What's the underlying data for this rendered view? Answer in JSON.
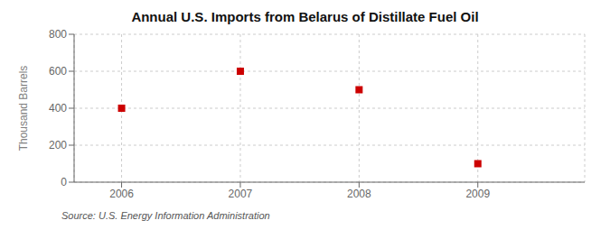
{
  "chart_data": {
    "type": "scatter",
    "title": "Annual U.S. Imports from Belarus of Distillate Fuel Oil",
    "ylabel": "Thousand Barrels",
    "annotation": "Source: U.S. Energy Information Administration",
    "x": [
      2006,
      2007,
      2008,
      2009
    ],
    "values": [
      400,
      600,
      500,
      100
    ],
    "xlim": [
      2005.6,
      2009.9
    ],
    "ylim": [
      0,
      800
    ],
    "xticks": [
      2006,
      2007,
      2008,
      2009
    ],
    "yticks": [
      0,
      200,
      400,
      600,
      800
    ],
    "color": "#cc0000",
    "marker": "square",
    "grid": true
  }
}
